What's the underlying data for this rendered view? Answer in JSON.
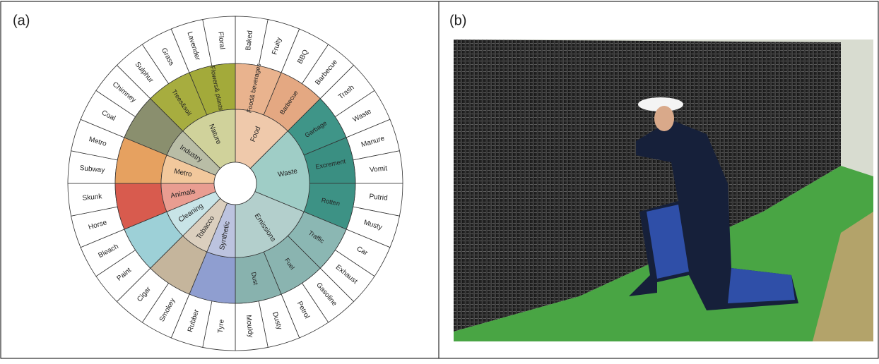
{
  "panels": [
    {
      "label": "(a)"
    },
    {
      "label": "(b)"
    }
  ],
  "wheel": {
    "categories": [
      {
        "label": "Food",
        "color": "#efc9ab",
        "groups": [
          {
            "label": "Food& beverages",
            "color": "#e9b38e",
            "leaves": [
              "Baked",
              "Fruity"
            ]
          },
          {
            "label": "Barbecue",
            "color": "#e4a882",
            "leaves": [
              "BBQ",
              "Barbecue"
            ]
          }
        ]
      },
      {
        "label": "Waste",
        "color": "#9fcdc6",
        "groups": [
          {
            "label": "Garbage",
            "color": "#3f9588",
            "leaves": [
              "Trash",
              "Waste"
            ]
          },
          {
            "label": "Excrement",
            "color": "#3a8f82",
            "leaves": [
              "Manure",
              "Vomit"
            ]
          },
          {
            "label": "Rotten",
            "color": "#3d9285",
            "leaves": [
              "Putrid",
              "Musty"
            ]
          }
        ]
      },
      {
        "label": "Emissions",
        "color": "#b3cfcc",
        "groups": [
          {
            "label": "Traffic",
            "color": "#8bb7b3",
            "leaves": [
              "Car",
              "Exhaust"
            ]
          },
          {
            "label": "Fuel",
            "color": "#8ab4b0",
            "leaves": [
              "Gasoline",
              "Petrol"
            ]
          },
          {
            "label": "Dust",
            "color": "#88b2ae",
            "leaves": [
              "Dusty",
              "Mouldy"
            ]
          }
        ]
      },
      {
        "label": "Synthetic",
        "color": "#bcc3df",
        "groups": [
          {
            "color": "#8f9ed0",
            "leaves": [
              "Tyre",
              "Rubber"
            ]
          }
        ]
      },
      {
        "label": "Tobacco",
        "color": "#dbcfbe",
        "groups": [
          {
            "color": "#c5b59c",
            "leaves": [
              "Smokey",
              "Cigar"
            ]
          }
        ]
      },
      {
        "label": "Cleaning",
        "color": "#c8e4e7",
        "groups": [
          {
            "color": "#9dd0d7",
            "leaves": [
              "Paint",
              "Bleach"
            ]
          }
        ]
      },
      {
        "label": "Animals",
        "color": "#e99d91",
        "groups": [
          {
            "color": "#d85b4e",
            "leaves": [
              "Horse",
              "Skunk"
            ]
          }
        ]
      },
      {
        "label": "Metro",
        "color": "#f2c89c",
        "groups": [
          {
            "color": "#e6a160",
            "leaves": [
              "Subway",
              "Metro"
            ]
          }
        ]
      },
      {
        "label": "Industry",
        "color": "#b9bda6",
        "groups": [
          {
            "color": "#8a8f6e",
            "leaves": [
              "Coal",
              "Chimney"
            ]
          }
        ]
      },
      {
        "label": "Nature",
        "color": "#d0d29b",
        "groups": [
          {
            "label": "Trees&soil",
            "color": "#a7ad3f",
            "leaves": [
              "Sulphur",
              "Grass"
            ]
          },
          {
            "label": "Flowers& plants",
            "color": "#a3aa3a",
            "leaves": [
              "Lavender",
              "Floral"
            ]
          }
        ]
      }
    ]
  }
}
